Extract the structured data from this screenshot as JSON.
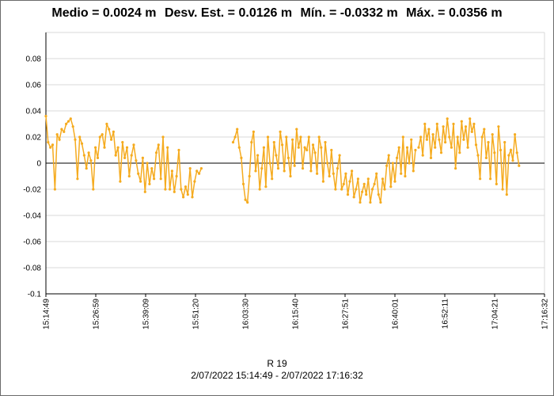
{
  "stats": {
    "mean": "Medio = 0.0024 m",
    "std": "Desv. Est. = 0.0126 m",
    "min": "Mín. = -0.0332 m",
    "max": "Máx. = 0.0356 m"
  },
  "footer": {
    "series_name": "R 19",
    "range": "2/07/2022 15:14:49 - 2/07/2022 17:16:32"
  },
  "colors": {
    "series": "#f5ab1f",
    "zero_line": "#000000",
    "grid": "#d9d9d9"
  },
  "chart_data": {
    "type": "line",
    "title": "Medio = 0.0024 m  Desv. Est. = 0.0126 m  Mín. = -0.0332 m  Máx. = 0.0356 m",
    "xlabel": "R 19",
    "ylabel": "",
    "ylim": [
      -0.1,
      0.1
    ],
    "y_ticks": [
      -0.1,
      -0.08,
      -0.06,
      -0.04,
      -0.02,
      0,
      0.02,
      0.04,
      0.06,
      0.08
    ],
    "y_tick_labels": [
      "-0.1",
      "-0.08",
      "-0.06",
      "-0.04",
      "-0.02",
      "0",
      "0.02",
      "0.04",
      "0.06",
      "0.08"
    ],
    "x_tick_labels": [
      "15:14:49",
      "15:26:59",
      "15:39:09",
      "15:51:20",
      "16:03:30",
      "16:15:40",
      "16:27:51",
      "16:40:01",
      "16:52:11",
      "17:04:21",
      "17:16:32"
    ],
    "x_unit": "minutes since 15:14:49",
    "xlim": [
      0,
      121.72
    ],
    "grid": true,
    "series": [
      {
        "name": "R 19",
        "segments": [
          {
            "x": [
              0.0,
              0.55,
              1.1,
              1.65,
              2.2,
              2.75,
              3.3,
              3.85,
              4.4,
              4.95,
              5.5,
              6.05,
              6.6,
              7.15,
              7.7,
              8.25,
              8.8,
              9.35,
              9.9,
              10.45,
              11.0,
              11.55,
              12.1,
              12.65,
              13.2,
              13.75,
              14.3,
              14.85,
              15.4,
              15.95,
              16.5,
              17.05,
              17.6,
              18.15,
              18.7,
              19.25,
              19.8,
              20.35,
              20.9,
              21.45,
              22.0,
              22.55,
              23.1,
              23.65,
              24.2,
              24.75,
              25.3,
              25.85,
              26.4,
              26.95,
              27.5,
              28.05,
              28.6,
              29.15,
              29.7,
              30.25,
              30.8,
              31.35,
              31.9,
              32.45,
              33.0,
              33.55,
              34.1,
              34.65,
              35.2,
              35.75,
              36.3,
              36.85,
              37.4,
              37.95
            ],
            "y": [
              0.036,
              0.016,
              0.012,
              0.014,
              -0.02,
              0.022,
              0.018,
              0.026,
              0.024,
              0.03,
              0.032,
              0.034,
              0.028,
              0.018,
              -0.012,
              0.02,
              0.015,
              0.006,
              -0.004,
              0.008,
              0.002,
              -0.02,
              0.012,
              0.004,
              0.02,
              0.022,
              0.012,
              0.03,
              0.026,
              0.018,
              0.024,
              0.006,
              0.012,
              -0.014,
              0.016,
              0.004,
              0.012,
              -0.01,
              0.006,
              0.014,
              0.002,
              -0.008,
              -0.014,
              0.004,
              -0.022,
              0.0,
              -0.016,
              -0.004,
              -0.012,
              0.008,
              0.014,
              -0.012,
              0.02,
              -0.02,
              0.012,
              -0.02,
              -0.006,
              -0.022,
              -0.01,
              0.01,
              -0.02,
              -0.026,
              -0.018,
              -0.024,
              -0.004,
              -0.026,
              -0.014,
              -0.006,
              -0.008,
              -0.004
            ]
          },
          {
            "x": [
              45.7,
              46.2,
              46.7,
              47.2,
              47.7,
              48.2,
              48.7,
              49.2,
              49.7,
              50.2,
              50.7,
              51.2,
              51.7,
              52.2,
              52.7,
              53.2,
              53.7,
              54.2,
              54.7,
              55.2,
              55.7,
              56.2,
              56.7,
              57.2,
              57.7,
              58.2,
              58.7,
              59.2,
              59.7,
              60.2,
              60.7,
              61.2,
              61.7,
              62.2,
              62.7,
              63.2,
              63.7,
              64.2,
              64.7,
              65.2,
              65.7,
              66.2,
              66.7,
              67.2,
              67.7,
              68.2,
              68.7,
              69.2,
              69.7,
              70.2,
              70.7,
              71.2,
              71.7,
              72.2,
              72.7,
              73.2,
              73.7,
              74.2,
              74.7,
              75.2,
              75.7,
              76.2,
              76.7,
              77.2,
              77.7,
              78.2,
              78.7,
              79.2,
              79.7,
              80.2,
              80.7,
              81.2,
              81.7,
              82.2,
              82.7,
              83.2,
              83.7,
              84.2,
              84.7,
              85.2,
              85.7,
              86.2,
              86.7,
              87.2,
              87.7,
              88.2,
              88.7,
              89.2,
              89.7,
              90.2
            ],
            "y": [
              0.016,
              0.02,
              0.026,
              0.012,
              0.004,
              -0.016,
              -0.028,
              -0.03,
              -0.01,
              0.016,
              0.024,
              -0.006,
              0.006,
              -0.02,
              -0.004,
              0.012,
              -0.018,
              0.02,
              0.0,
              -0.012,
              0.016,
              0.006,
              -0.004,
              0.024,
              0.014,
              -0.006,
              0.02,
              0.004,
              -0.01,
              0.018,
              -0.002,
              0.026,
              0.012,
              0.02,
              -0.004,
              0.012,
              0.01,
              0.02,
              -0.006,
              0.014,
              0.008,
              -0.008,
              0.02,
              0.012,
              -0.014,
              0.016,
              0.0,
              -0.01,
              0.01,
              -0.008,
              -0.02,
              -0.004,
              0.006,
              -0.02,
              -0.016,
              -0.008,
              -0.024,
              -0.014,
              -0.006,
              -0.026,
              -0.02,
              -0.012,
              -0.03,
              -0.022,
              -0.016,
              -0.024,
              -0.012,
              -0.03,
              -0.02,
              -0.016,
              -0.008,
              -0.024,
              -0.03,
              -0.012,
              -0.02,
              -0.002,
              0.006,
              -0.018,
              0.0,
              -0.014,
              0.004,
              0.012,
              -0.008,
              0.02,
              -0.01,
              0.012,
              0.0,
              0.018,
              -0.006,
              0.01
            ]
          },
          {
            "x": [
              91.0,
              91.5,
              92.0,
              92.5,
              93.0,
              93.5,
              94.0,
              94.5,
              95.0,
              95.5,
              96.0,
              96.5,
              97.0,
              97.5,
              98.0,
              98.5,
              99.0,
              99.5,
              100.0,
              100.5,
              101.0,
              101.5,
              102.0,
              102.5,
              103.0,
              103.5,
              104.0,
              104.5,
              105.0,
              105.5,
              106.0,
              106.5,
              107.0,
              107.5,
              108.0,
              108.5,
              109.0,
              109.5,
              110.0,
              110.5,
              111.0,
              111.5,
              112.0,
              112.5,
              113.0,
              113.5,
              114.0,
              114.5,
              115.0,
              115.5
            ],
            "y": [
              0.012,
              0.02,
              0.006,
              0.03,
              0.018,
              0.026,
              0.004,
              0.022,
              0.012,
              0.03,
              0.018,
              0.008,
              0.028,
              0.016,
              0.034,
              0.02,
              0.012,
              0.03,
              -0.004,
              0.02,
              0.008,
              0.032,
              0.018,
              0.028,
              0.012,
              0.034,
              0.024,
              0.03,
              0.014,
              0.006,
              -0.012,
              0.02,
              0.026,
              0.004,
              0.016,
              -0.012,
              0.022,
              0.008,
              -0.016,
              0.028,
              0.01,
              -0.02,
              0.016,
              -0.024,
              0.006,
              0.01,
              0.002,
              0.022,
              0.008,
              -0.002
            ]
          }
        ]
      }
    ]
  }
}
